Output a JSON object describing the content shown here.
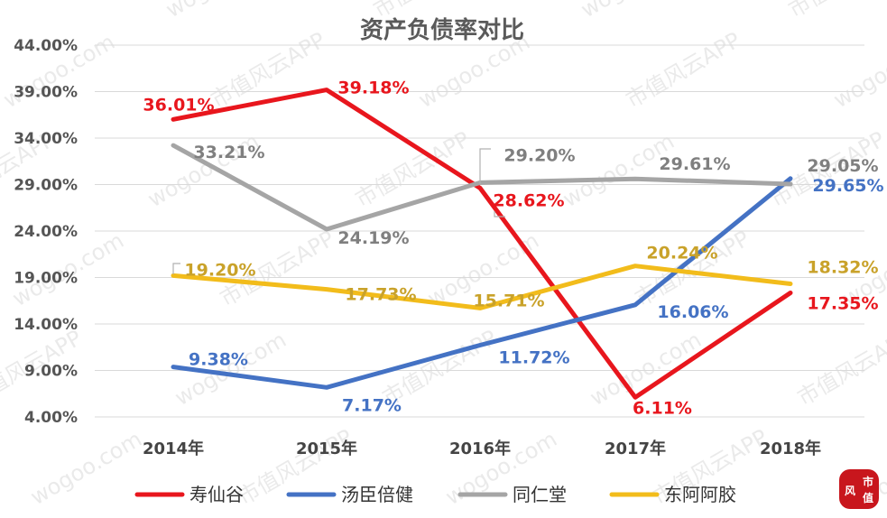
{
  "chart_data": {
    "type": "line",
    "title": "资产负债率对比",
    "categories": [
      "2014年",
      "2015年",
      "2016年",
      "2017年",
      "2018年"
    ],
    "y_ticks": [
      "44.00%",
      "39.00%",
      "34.00%",
      "29.00%",
      "24.00%",
      "19.00%",
      "14.00%",
      "9.00%",
      "4.00%"
    ],
    "ylim": [
      4,
      44
    ],
    "grid": true,
    "legend_position": "bottom",
    "series": [
      {
        "name": "寿仙谷",
        "color": "#e8161d",
        "values": [
          36.01,
          39.18,
          28.62,
          6.11,
          17.35
        ],
        "labels": [
          "36.01%",
          "39.18%",
          "28.62%",
          "6.11%",
          "17.35%"
        ]
      },
      {
        "name": "汤臣倍健",
        "color": "#4472c4",
        "values": [
          9.38,
          7.17,
          11.72,
          16.06,
          29.65
        ],
        "labels": [
          "9.38%",
          "7.17%",
          "11.72%",
          "16.06%",
          "29.65%"
        ]
      },
      {
        "name": "同仁堂",
        "color": "#a5a5a5",
        "values": [
          33.21,
          24.19,
          29.2,
          29.61,
          29.05
        ],
        "labels": [
          "33.21%",
          "24.19%",
          "29.20%",
          "29.61%",
          "29.05%"
        ]
      },
      {
        "name": "东阿阿胶",
        "color": "#f2bc1b",
        "values": [
          19.2,
          17.73,
          15.71,
          20.24,
          18.32
        ],
        "labels": [
          "19.20%",
          "17.73%",
          "15.71%",
          "20.24%",
          "18.32%"
        ]
      }
    ]
  },
  "label_colors": {
    "寿仙谷": "#e8161d",
    "汤臣倍健": "#4472c4",
    "同仁堂": "#7f7f7f",
    "东阿阿胶": "#c9a22a"
  },
  "watermark": {
    "text_cn": "市值风云APP",
    "text_url": "wogoo.com"
  },
  "logo": {
    "chars": [
      "风",
      "市",
      "值"
    ],
    "color": "#c8161d"
  }
}
